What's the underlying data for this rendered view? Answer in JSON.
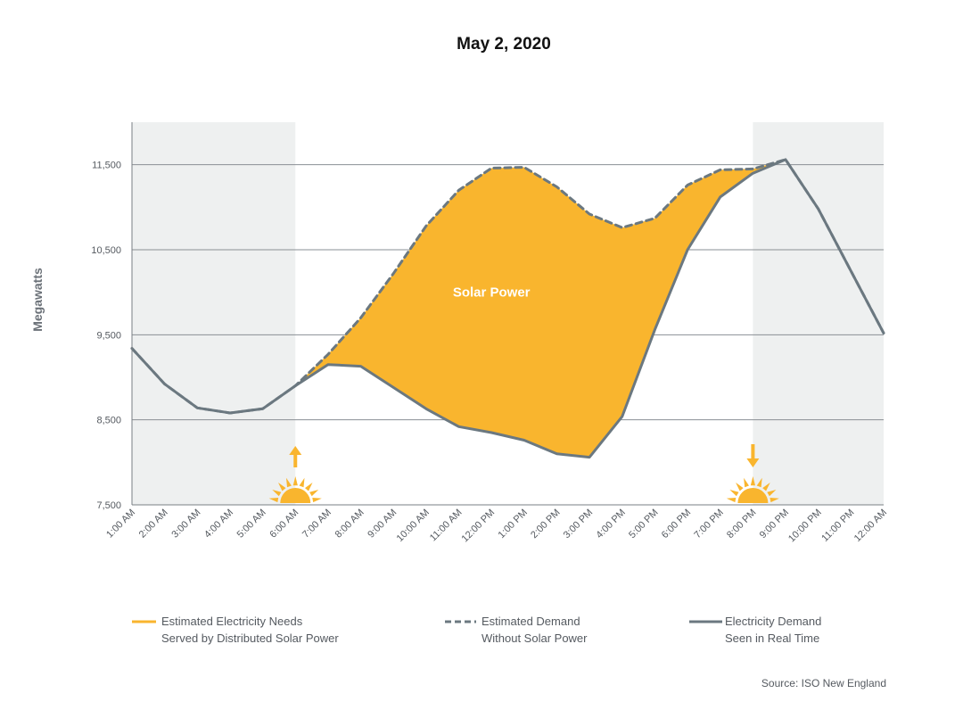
{
  "chart_data": {
    "type": "line",
    "title": "May 2, 2020",
    "ylabel": "Megawatts",
    "xlabel": "",
    "categories": [
      "1:00 AM",
      "2:00 AM",
      "3:00 AM",
      "4:00 AM",
      "5:00 AM",
      "6:00 AM",
      "7:00 AM",
      "8:00 AM",
      "9:00 AM",
      "10:00 AM",
      "11:00 AM",
      "12:00 PM",
      "1:00 PM",
      "2:00 PM",
      "3:00 PM",
      "4:00 PM",
      "5:00 PM",
      "6:00 PM",
      "7:00 PM",
      "8:00 PM",
      "9:00 PM",
      "10:00 PM",
      "11:00 PM",
      "12:00 AM"
    ],
    "ylim": [
      7500,
      12000
    ],
    "yticks": [
      7500,
      8500,
      9500,
      10500,
      11500
    ],
    "ytick_labels": [
      "7,500",
      "8,500",
      "9,500",
      "10,500",
      "11,500"
    ],
    "grid": true,
    "night_shading": [
      [
        "1:00 AM",
        "6:00 AM"
      ],
      [
        "8:00 PM",
        "12:00 AM"
      ]
    ],
    "sunrise_at": "6:00 AM",
    "sunset_at": "8:00 PM",
    "series": [
      {
        "name": "Electricity Demand Seen in Real Time",
        "style": "solid",
        "color": "#6b7880",
        "values": [
          9340,
          8920,
          8640,
          8580,
          8630,
          8900,
          9150,
          9130,
          8880,
          8630,
          8420,
          8350,
          8260,
          8100,
          8060,
          8540,
          9560,
          10500,
          11120,
          11400,
          11560,
          10980,
          10250,
          9520
        ]
      },
      {
        "name": "Estimated Demand Without Solar Power",
        "style": "dashed",
        "color": "#6b7880",
        "values": [
          9340,
          8920,
          8640,
          8580,
          8630,
          8900,
          9270,
          9700,
          10220,
          10780,
          11200,
          11460,
          11470,
          11240,
          10920,
          10760,
          10870,
          11260,
          11440,
          11450,
          11560,
          10980,
          10250,
          9520
        ]
      }
    ],
    "annotations": [
      {
        "text": "Solar Power",
        "x": "12:00 PM",
        "y": 10000
      }
    ],
    "legend": {
      "placement": "bottom",
      "items": [
        {
          "line1": "Estimated Electricity Needs",
          "line2": "Served by Distributed Solar Power",
          "style": "fill",
          "color": "#f9b52e"
        },
        {
          "line1": "Estimated Demand",
          "line2": "Without Solar Power",
          "style": "dashed",
          "color": "#6b7880"
        },
        {
          "line1": "Electricity Demand",
          "line2": "Seen in Real Time",
          "style": "solid",
          "color": "#6b7880"
        }
      ]
    },
    "source": "Source: ISO New England",
    "colors": {
      "solar_fill": "#f9b52e",
      "night_shade": "#eef0f0",
      "line": "#6b7880",
      "grid": "#8a8f94",
      "sun": "#f9b52e"
    }
  }
}
